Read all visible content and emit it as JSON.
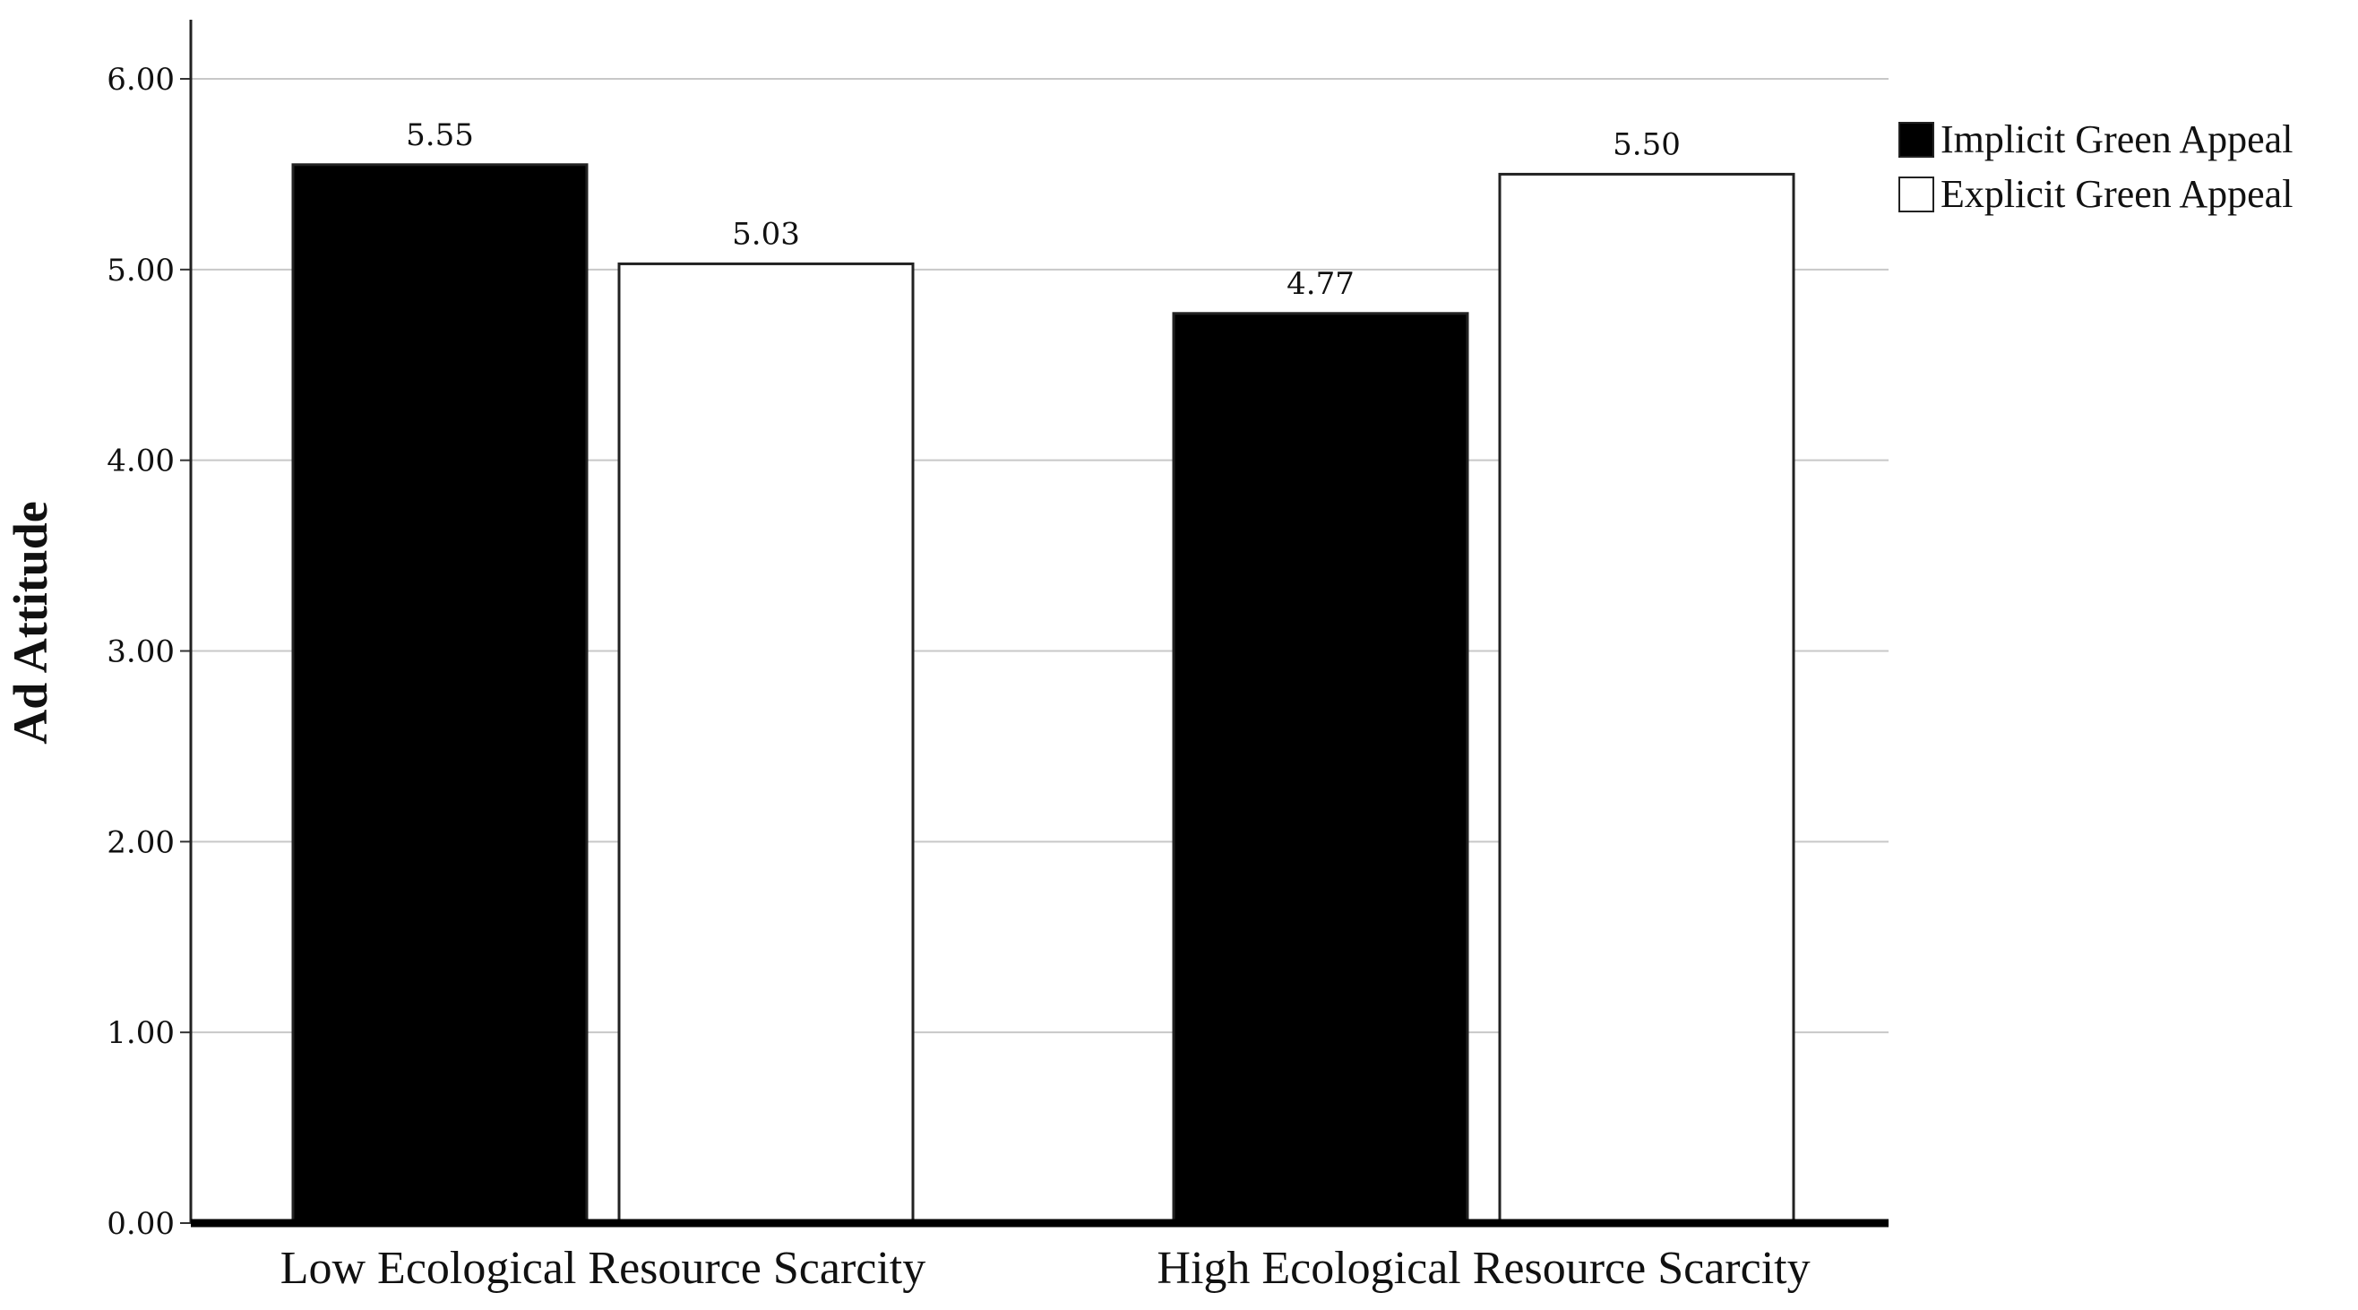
{
  "chart_data": {
    "type": "bar",
    "title": "",
    "xlabel": "",
    "ylabel": "Ad Attitude",
    "ylim": [
      0,
      6
    ],
    "yticks": [
      "0.00",
      "1.00",
      "2.00",
      "3.00",
      "4.00",
      "5.00",
      "6.00"
    ],
    "grid": true,
    "legend_position": "right-top",
    "categories": [
      "Low Ecological Resource Scarcity",
      "High Ecological Resource Scarcity"
    ],
    "series": [
      {
        "name": "Implicit Green Appeal",
        "values": [
          5.55,
          4.77
        ],
        "labels": [
          "5.55",
          "4.77"
        ],
        "color": "#000000"
      },
      {
        "name": "Explicit Green Appeal",
        "values": [
          5.03,
          5.5
        ],
        "labels": [
          "5.03",
          "5.50"
        ],
        "color": "#ffffff"
      }
    ]
  }
}
